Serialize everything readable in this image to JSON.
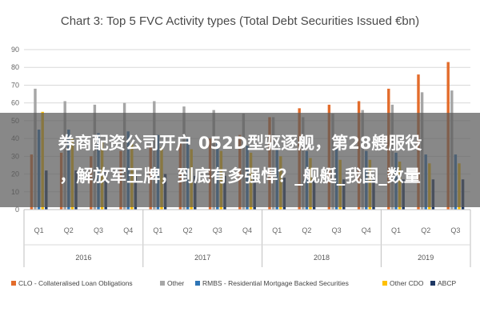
{
  "chart_data": {
    "type": "bar",
    "title": "Chart 3: Top 5 FVC Activity types (Total Debt Securities Issued €bn)",
    "xlabel": "",
    "ylabel": "",
    "ylim": [
      0,
      90
    ],
    "yticks": [
      0,
      10,
      20,
      30,
      40,
      50,
      60,
      70,
      80,
      90
    ],
    "grid": true,
    "legend_position": "bottom",
    "quarters": [
      "Q1",
      "Q2",
      "Q3",
      "Q4",
      "Q1",
      "Q2",
      "Q3",
      "Q4",
      "Q1",
      "Q2",
      "Q3",
      "Q4",
      "Q1",
      "Q2",
      "Q3"
    ],
    "years": [
      {
        "label": "2016",
        "quarters": 4
      },
      {
        "label": "2017",
        "quarters": 4
      },
      {
        "label": "2018",
        "quarters": 4
      },
      {
        "label": "2019",
        "quarters": 3
      }
    ],
    "series": [
      {
        "name": "CLO - Collateralised Loan Obligations",
        "color": "#e36c2b",
        "values": [
          31,
          32,
          30,
          33,
          35,
          38,
          40,
          42,
          52,
          57,
          59,
          61,
          68,
          76,
          83
        ]
      },
      {
        "name": "Other",
        "color": "#a6a6a6",
        "values": [
          68,
          61,
          59,
          60,
          61,
          58,
          56,
          54,
          52,
          52,
          54,
          56,
          59,
          66,
          67
        ]
      },
      {
        "name": "RMBS - Residential Mortgage Backed Securities",
        "color": "#2e75b6",
        "values": [
          45,
          45,
          43,
          44,
          42,
          40,
          38,
          36,
          34,
          33,
          34,
          33,
          32,
          31,
          31
        ]
      },
      {
        "name": "Other CDO",
        "color": "#ffc000",
        "values": [
          55,
          40,
          38,
          37,
          35,
          34,
          33,
          32,
          30,
          29,
          28,
          28,
          27,
          26,
          26
        ]
      },
      {
        "name": "ABCP",
        "color": "#1f3864",
        "values": [
          22,
          22,
          21,
          20,
          20,
          19,
          19,
          18,
          18,
          17,
          17,
          17,
          17,
          17,
          17
        ]
      }
    ]
  },
  "overlay": {
    "line1": "券商配资公司开户 052D型驱逐舰，第28艘服役",
    "line2": "，解放军王牌，到底有多强悍？_舰艇_我国_数量"
  }
}
